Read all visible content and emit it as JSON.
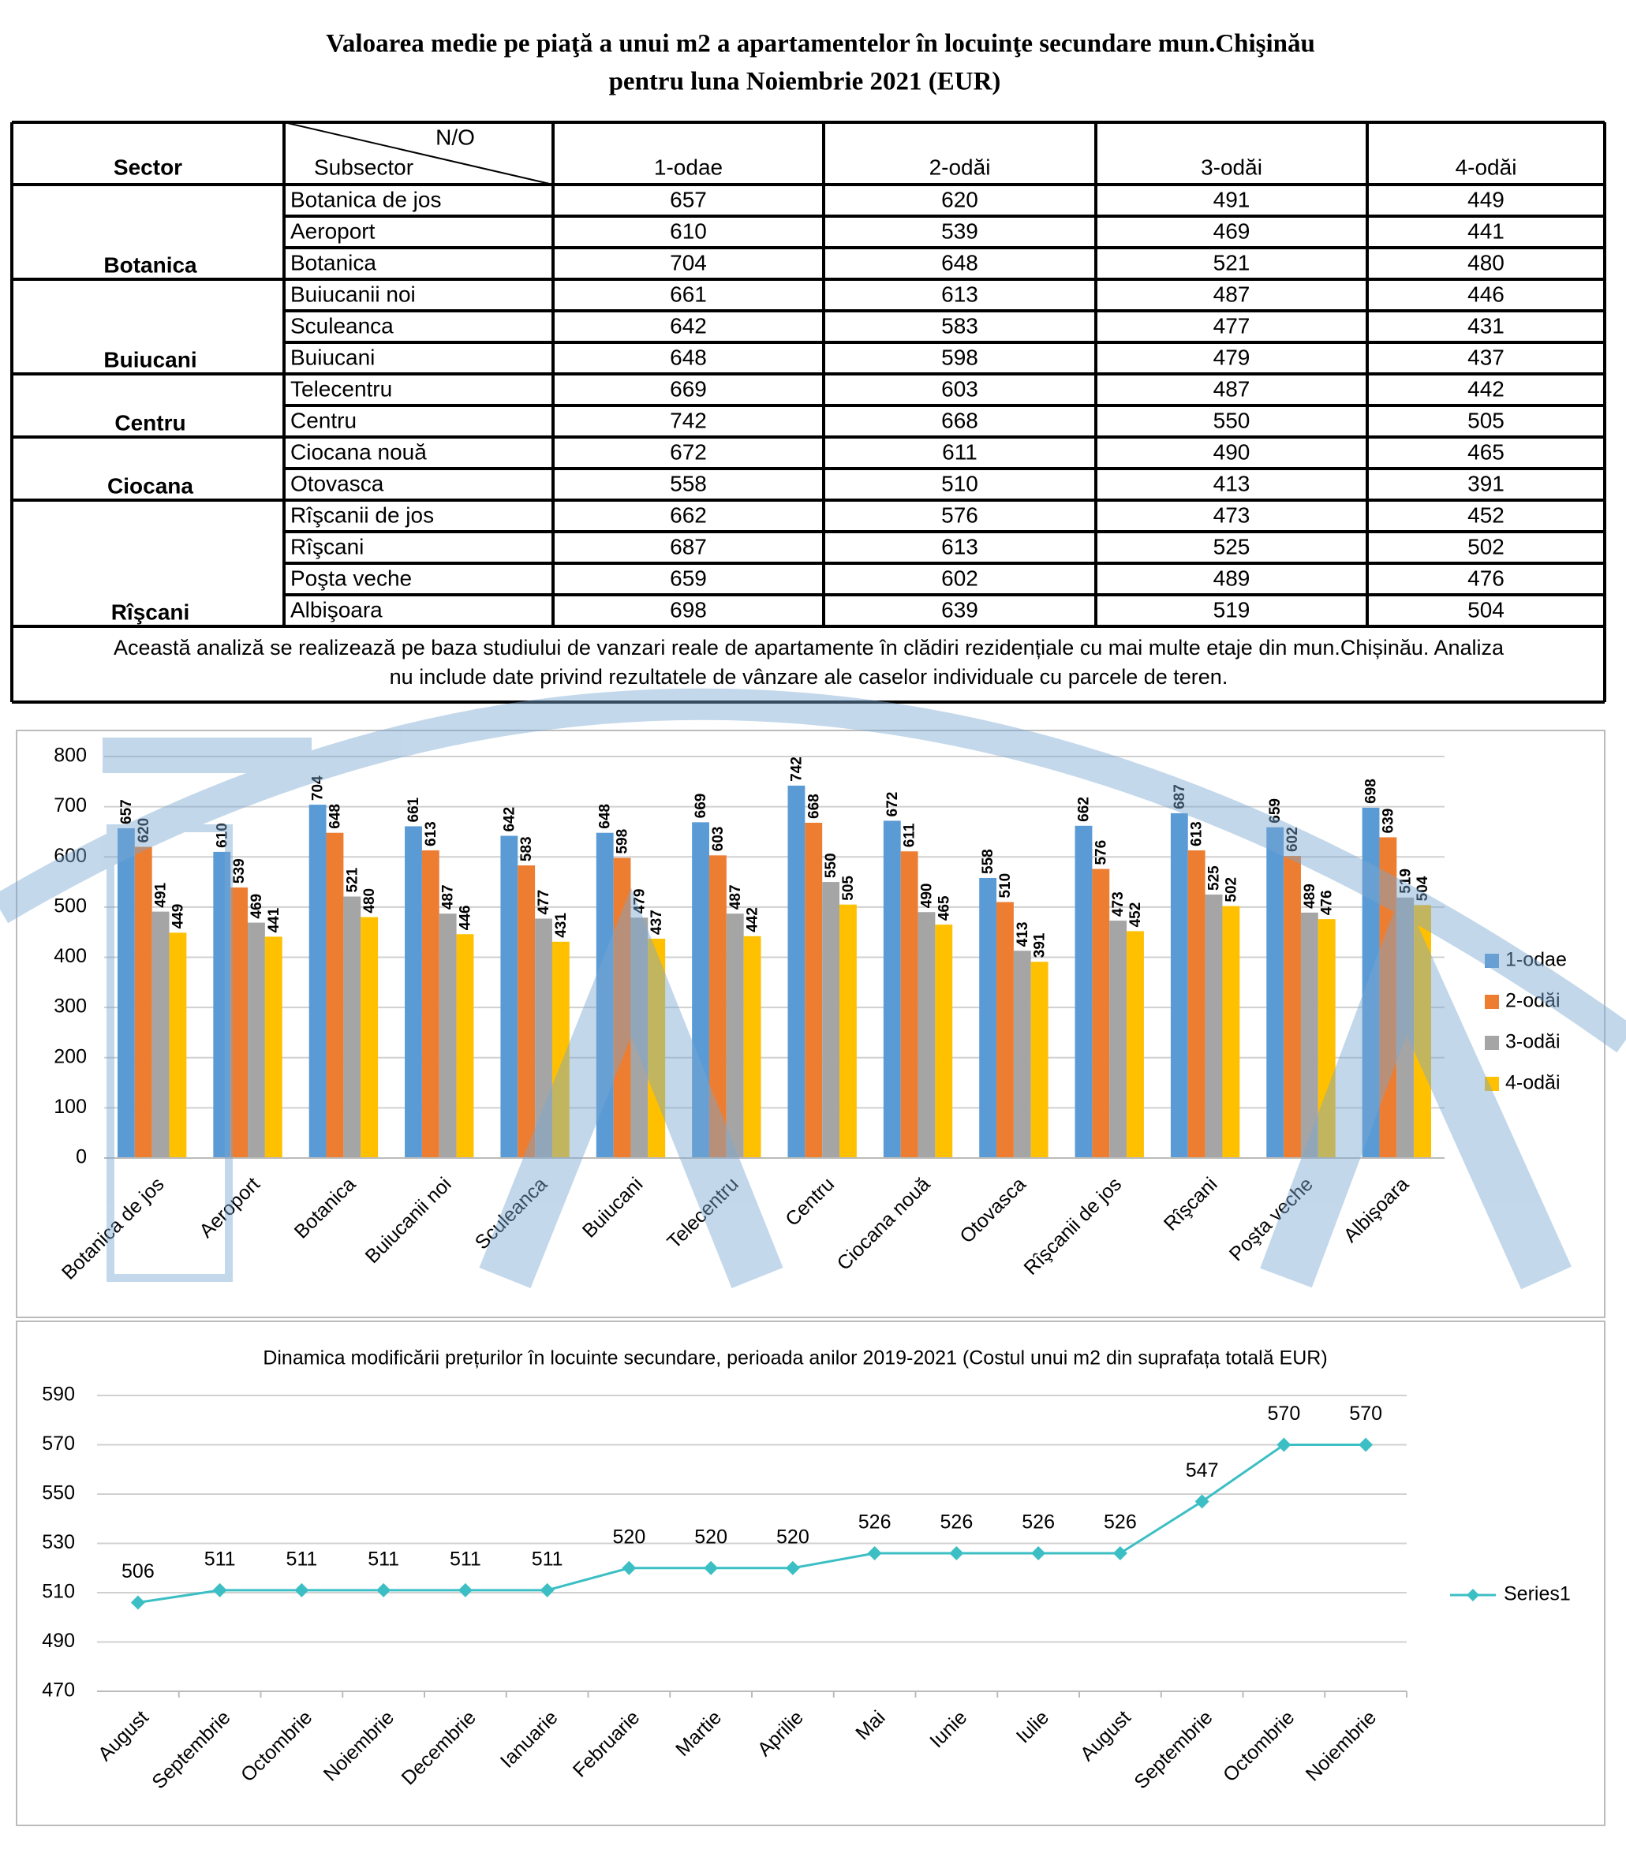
{
  "header": {
    "title": [
      "Valoarea medie pe piaţă a unui m2 a apartamentelor în locuinţe secundare mun.Chişinău",
      "pentru luna Noiembrie 2021 (EUR)"
    ]
  },
  "table": {
    "columns": {
      "sector": "Sector",
      "no": "N/O",
      "subsector": "Subsector",
      "rooms": [
        "1-odae",
        "2-odăi",
        "3-odăi",
        "4-odăi"
      ]
    },
    "groups": [
      {
        "sector": "Botanica",
        "rows": [
          {
            "subsector": "Botanica de jos",
            "values": [
              657,
              620,
              491,
              449
            ]
          },
          {
            "subsector": "Aeroport",
            "values": [
              610,
              539,
              469,
              441
            ]
          },
          {
            "subsector": "Botanica",
            "values": [
              704,
              648,
              521,
              480
            ]
          }
        ]
      },
      {
        "sector": "Buiucani",
        "rows": [
          {
            "subsector": "Buiucanii noi",
            "values": [
              661,
              613,
              487,
              446
            ]
          },
          {
            "subsector": "Sculeanca",
            "values": [
              642,
              583,
              477,
              431
            ]
          },
          {
            "subsector": "Buiucani",
            "values": [
              648,
              598,
              479,
              437
            ]
          }
        ]
      },
      {
        "sector": "Centru",
        "rows": [
          {
            "subsector": "Telecentru",
            "values": [
              669,
              603,
              487,
              442
            ]
          },
          {
            "subsector": "Centru",
            "values": [
              742,
              668,
              550,
              505
            ]
          }
        ]
      },
      {
        "sector": "Ciocana",
        "rows": [
          {
            "subsector": "Ciocana nouă",
            "values": [
              672,
              611,
              490,
              465
            ]
          },
          {
            "subsector": "Otovasca",
            "values": [
              558,
              510,
              413,
              391
            ]
          }
        ]
      },
      {
        "sector": "Rîşcani",
        "rows": [
          {
            "subsector": "Rîşcanii de jos",
            "values": [
              662,
              576,
              473,
              452
            ]
          },
          {
            "subsector": "Rîşcani",
            "values": [
              687,
              613,
              525,
              502
            ]
          },
          {
            "subsector": "Poşta veche",
            "values": [
              659,
              602,
              489,
              476
            ]
          },
          {
            "subsector": "Albişoara",
            "values": [
              698,
              639,
              519,
              504
            ]
          }
        ]
      }
    ],
    "note": [
      "Această analiză se realizează pe baza studiului de vanzari reale de apartamente în clădiri rezidențiale cu mai multe etaje din mun.Chișinău. Analiza",
      "nu include date privind rezultatele de vânzare ale caselor individuale cu parcele de teren."
    ]
  },
  "chart_data": [
    {
      "type": "bar",
      "categories": [
        "Botanica de jos",
        "Aeroport",
        "Botanica",
        "Buiucanii noi",
        "Sculeanca",
        "Buiucani",
        "Telecentru",
        "Centru",
        "Ciocana nouă",
        "Otovasca",
        "Rîşcanii de jos",
        "Rîşcani",
        "Poşta veche",
        "Albişoara"
      ],
      "series": [
        {
          "name": "1-odae",
          "color": "#5b9bd5",
          "values": [
            657,
            610,
            704,
            661,
            642,
            648,
            669,
            742,
            672,
            558,
            662,
            687,
            659,
            698
          ]
        },
        {
          "name": "2-odăi",
          "color": "#ed7d31",
          "values": [
            620,
            539,
            648,
            613,
            583,
            598,
            603,
            668,
            611,
            510,
            576,
            613,
            602,
            639
          ]
        },
        {
          "name": "3-odăi",
          "color": "#a5a5a5",
          "values": [
            491,
            469,
            521,
            487,
            477,
            479,
            487,
            550,
            490,
            413,
            473,
            525,
            489,
            519
          ]
        },
        {
          "name": "4-odăi",
          "color": "#ffc000",
          "values": [
            449,
            441,
            480,
            446,
            431,
            437,
            442,
            505,
            465,
            391,
            452,
            502,
            476,
            504
          ]
        }
      ],
      "ylim": [
        0,
        800
      ],
      "yticks": [
        0,
        100,
        200,
        300,
        400,
        500,
        600,
        700,
        800
      ],
      "grid": true,
      "legend": "right"
    },
    {
      "type": "line",
      "title": "Dinamica modificării prețurilor în locuinte secundare, perioada anilor 2019-2021 (Costul unui m2 din suprafața totală EUR)",
      "categories": [
        "August",
        "Septembrie",
        "Octombrie",
        "Noiembrie",
        "Decembrie",
        "Ianuarie",
        "Februarie",
        "Martie",
        "Aprilie",
        "Mai",
        "Iunie",
        "Iulie",
        "August",
        "Septembrie",
        "Octombrie",
        "Noiembrie"
      ],
      "series": [
        {
          "name": "Series1",
          "color": "#3cbfc4",
          "values": [
            506,
            511,
            511,
            511,
            511,
            511,
            520,
            520,
            520,
            526,
            526,
            526,
            526,
            547,
            570,
            570
          ]
        }
      ],
      "ylim": [
        470,
        590
      ],
      "yticks": [
        470,
        490,
        510,
        530,
        550,
        570,
        590
      ],
      "grid": true,
      "legend": "right"
    }
  ]
}
